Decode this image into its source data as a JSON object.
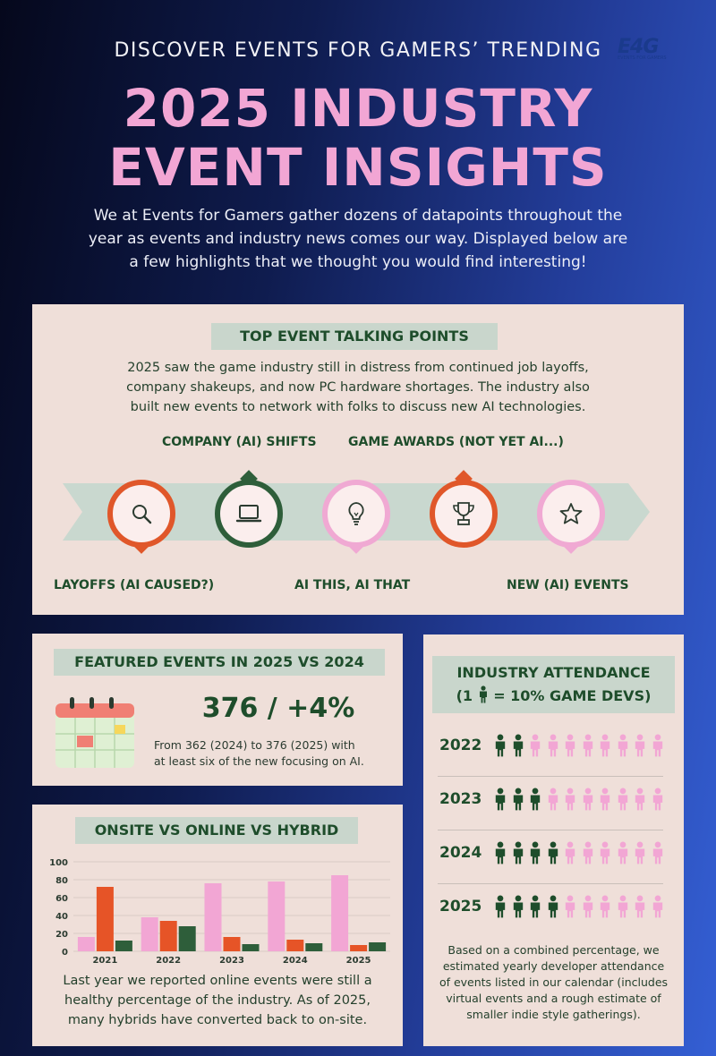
{
  "header": {
    "kicker": "DISCOVER EVENTS FOR GAMERS’ TRENDING",
    "logo_text": "E4G",
    "logo_subtext": "EVENTS FOR GAMERS",
    "title_line1": "2025 INDUSTRY",
    "title_line2": "EVENT INSIGHTS",
    "intro_line1": "We at Events for Gamers gather dozens of datapoints throughout the",
    "intro_line2": "year as events and industry news comes our way. Displayed below are",
    "intro_line3": "a few highlights that we thought you would find interesting!"
  },
  "talking_points": {
    "heading": "TOP EVENT TALKING POINTS",
    "desc_line1": "2025 saw the game industry still in distress from continued job layoffs,",
    "desc_line2": "company shakeups, and now PC hardware shortages. The industry also",
    "desc_line3": "built new events to network with folks to discuss new AI technologies.",
    "items": [
      {
        "label": "LAYOFFS (AI CAUSED?)",
        "icon": "search-icon",
        "color": "#e0572a"
      },
      {
        "label": "COMPANY (AI) SHIFTS",
        "icon": "laptop-icon",
        "color": "#2e5e3a"
      },
      {
        "label": "AI THIS, AI THAT",
        "icon": "lightbulb-icon",
        "color": "#f0a9d3"
      },
      {
        "label": "GAME AWARDS (NOT YET AI...)",
        "icon": "trophy-icon",
        "color": "#e0572a"
      },
      {
        "label": "NEW (AI) EVENTS",
        "icon": "star-icon",
        "color": "#f0a9d3"
      }
    ]
  },
  "featured": {
    "heading": "FEATURED EVENTS IN 2025 VS 2024",
    "stat": "376 / +4%",
    "desc_line1": "From 362 (2024) to 376 (2025) with",
    "desc_line2": "at least six of the new focusing on AI.",
    "icon": "calendar-icon"
  },
  "modes": {
    "heading": "ONSITE VS ONLINE VS HYBRID",
    "desc_line1": "Last year we reported online events were still a",
    "desc_line2": "healthy percentage of the industry. As of 2025,",
    "desc_line3": "many hybrids have converted back to on-site."
  },
  "attendance": {
    "heading_line1": "INDUSTRY ATTENDANCE",
    "heading_pre": "(1",
    "heading_post": "= 10% GAME DEVS)",
    "icon": "person-icon",
    "colors": {
      "filled": "#1e4d2b",
      "empty": "#f2a6d4"
    },
    "rows": [
      {
        "year": "2022",
        "filled": 2
      },
      {
        "year": "2023",
        "filled": 3
      },
      {
        "year": "2024",
        "filled": 4
      },
      {
        "year": "2025",
        "filled": 4
      }
    ],
    "note_line1": "Based on a combined percentage, we",
    "note_line2": "estimated yearly developer attendance",
    "note_line3": "of events listed in our calendar (includes",
    "note_line4": "virtual events and a rough estimate of",
    "note_line5": "smaller indie style gatherings)."
  },
  "chart_data": {
    "type": "bar",
    "categories": [
      "2021",
      "2022",
      "2023",
      "2024",
      "2025"
    ],
    "series": [
      {
        "values": [
          16,
          38,
          76,
          78,
          85
        ],
        "color": "#f2a6d4"
      },
      {
        "values": [
          72,
          34,
          16,
          13,
          7
        ],
        "color": "#e65427"
      },
      {
        "values": [
          12,
          28,
          8,
          9,
          10
        ],
        "color": "#2e5e3a"
      }
    ],
    "yticks": [
      0,
      20,
      40,
      60,
      80,
      100
    ],
    "ylim": [
      0,
      100
    ],
    "grid": true
  }
}
